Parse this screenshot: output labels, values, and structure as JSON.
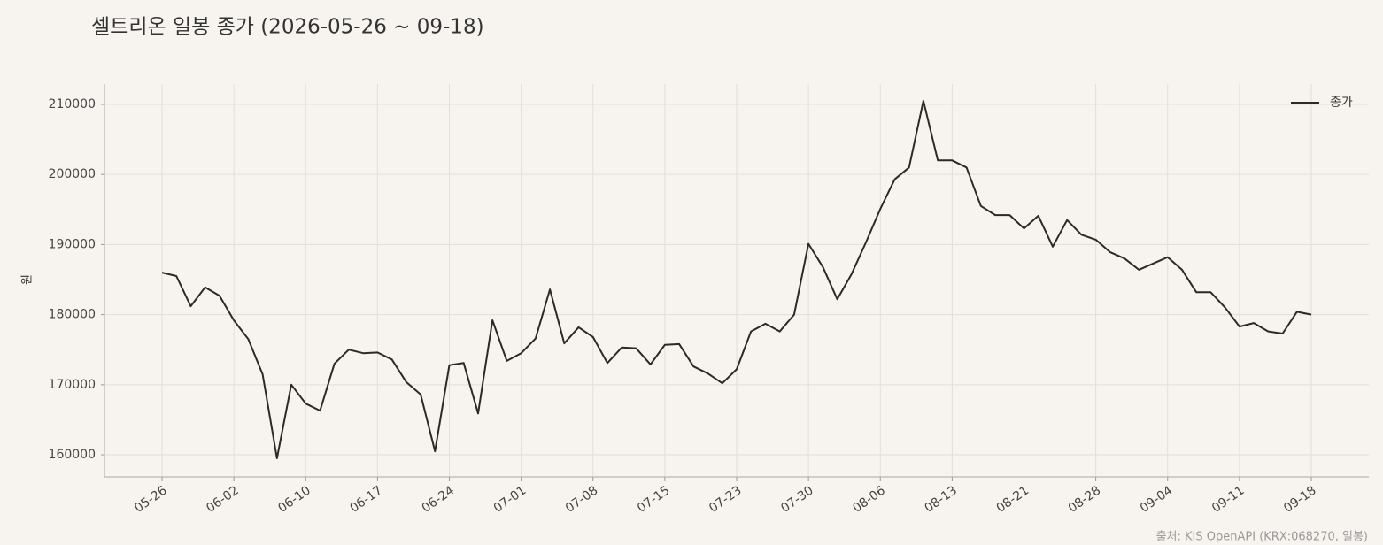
{
  "chart_data": {
    "type": "line",
    "title": "셀트리온 일봉 종가 (2026-05-26 ~ 09-18)",
    "ylabel": "원",
    "source": "출처: KIS OpenAPI (KRX:068270, 일봉)",
    "categories": [
      "05-26",
      null,
      null,
      null,
      null,
      "06-02",
      null,
      null,
      null,
      null,
      "06-10",
      null,
      null,
      null,
      null,
      "06-17",
      null,
      null,
      null,
      null,
      "06-24",
      null,
      null,
      null,
      null,
      "07-01",
      null,
      null,
      null,
      null,
      "07-08",
      null,
      null,
      null,
      null,
      "07-15",
      null,
      null,
      null,
      null,
      "07-23",
      null,
      null,
      null,
      null,
      "07-30",
      null,
      null,
      null,
      null,
      "08-06",
      null,
      null,
      null,
      null,
      "08-13",
      null,
      null,
      null,
      null,
      "08-21",
      null,
      null,
      null,
      null,
      "08-28",
      null,
      null,
      null,
      null,
      "09-04",
      null,
      null,
      null,
      null,
      "09-11",
      null,
      null,
      null,
      null,
      "09-18"
    ],
    "series": [
      {
        "name": "종가",
        "color": "#2b2a28",
        "values": [
          186000,
          185500,
          181200,
          183900,
          182700,
          179200,
          176500,
          171500,
          159500,
          170000,
          167300,
          166300,
          173000,
          175000,
          174500,
          174600,
          173600,
          170400,
          168600,
          160500,
          172800,
          173100,
          165900,
          179200,
          173400,
          174500,
          176600,
          183600,
          175900,
          178200,
          176800,
          173100,
          175300,
          175200,
          172900,
          175700,
          175800,
          172600,
          171600,
          170200,
          172200,
          177600,
          178700,
          177600,
          180000,
          190100,
          186800,
          182200,
          185800,
          190300,
          195100,
          199300,
          201000,
          210500,
          202000,
          202000,
          201000,
          195500,
          194200,
          194200,
          192300,
          194100,
          189700,
          193500,
          191400,
          190700,
          188900,
          188000,
          186400,
          187300,
          188200,
          186400,
          183200,
          183200,
          181000,
          178300,
          178800,
          177600,
          177300,
          180400,
          180000
        ]
      }
    ],
    "ylim": [
      156850,
      212900
    ],
    "yticks": [
      160000,
      170000,
      180000,
      190000,
      200000,
      210000
    ],
    "grid": true,
    "legend": "upper right"
  }
}
